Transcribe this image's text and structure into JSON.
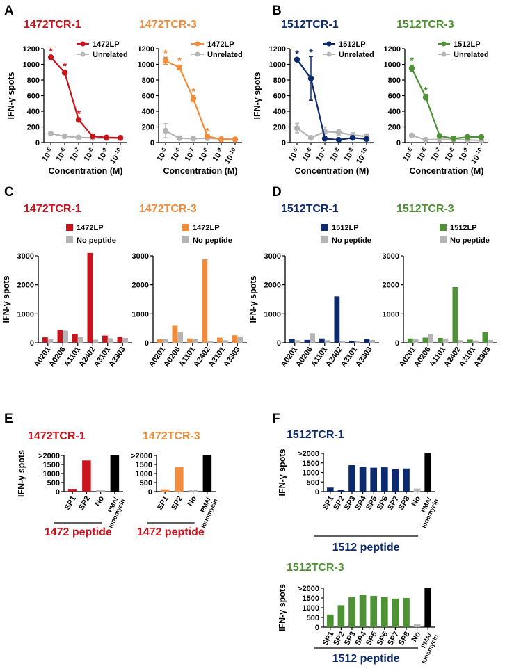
{
  "colors": {
    "red": "#c8141d",
    "orange": "#f08c3c",
    "navy": "#0d2a6e",
    "green": "#4f9135",
    "gray": "#b5b5b5",
    "black": "#000000"
  },
  "panel_labels": [
    "A",
    "B",
    "C",
    "D",
    "E",
    "F"
  ],
  "chart_data": [
    {
      "type": "line",
      "panel": "A",
      "title": "1472TCR-1",
      "color": "red",
      "ylabel": "IFN-γ spots",
      "xlabel": "Concentration (M)",
      "x_ticks": [
        "10-5",
        "10-6",
        "10-7",
        "10-8",
        "10-9",
        "10-10"
      ],
      "y_ticks": [
        "0",
        "200",
        "400",
        "600",
        "800",
        "1000",
        "1200"
      ],
      "ylim": [
        0,
        1200
      ],
      "series": [
        {
          "name": "1472LP",
          "color": "red",
          "values": [
            1090,
            895,
            290,
            80,
            65,
            60
          ],
          "errors": [
            0,
            30,
            25,
            0,
            0,
            0
          ],
          "star": [
            true,
            true,
            true,
            false,
            false,
            false
          ]
        },
        {
          "name": "Unrelated",
          "color": "gray",
          "values": [
            115,
            80,
            65,
            60,
            55,
            55
          ],
          "errors": [
            0,
            0,
            0,
            0,
            0,
            0
          ],
          "star": [
            false,
            false,
            false,
            false,
            false,
            false
          ]
        }
      ]
    },
    {
      "type": "line",
      "panel": "A",
      "title": "1472TCR-3",
      "color": "orange",
      "ylabel": "",
      "xlabel": "Concentration (M)",
      "x_ticks": [
        "10-5",
        "10-6",
        "10-7",
        "10-8",
        "10-9",
        "10-10"
      ],
      "y_ticks": [
        "0",
        "200",
        "400",
        "600",
        "800",
        "1000",
        "1200"
      ],
      "ylim": [
        0,
        1200
      ],
      "series": [
        {
          "name": "1472LP",
          "color": "orange",
          "values": [
            1045,
            960,
            560,
            80,
            40,
            40
          ],
          "errors": [
            45,
            30,
            40,
            10,
            0,
            0
          ],
          "star": [
            true,
            true,
            true,
            true,
            false,
            false
          ]
        },
        {
          "name": "Unrelated",
          "color": "gray",
          "values": [
            150,
            55,
            50,
            55,
            45,
            40
          ],
          "errors": [
            90,
            0,
            0,
            0,
            0,
            0
          ],
          "star": [
            false,
            false,
            false,
            false,
            false,
            false
          ]
        }
      ]
    },
    {
      "type": "line",
      "panel": "B",
      "title": "1512TCR-1",
      "color": "navy",
      "ylabel": "IFN-γ spots",
      "xlabel": "Concentration (M)",
      "x_ticks": [
        "10-5",
        "10-6",
        "10-7",
        "10-8",
        "10-9",
        "10-10"
      ],
      "y_ticks": [
        "0",
        "200",
        "400",
        "600",
        "800",
        "1000",
        "1200"
      ],
      "ylim": [
        0,
        1200
      ],
      "series": [
        {
          "name": "1512LP",
          "color": "navy",
          "values": [
            1060,
            820,
            50,
            35,
            60,
            45
          ],
          "errors": [
            20,
            280,
            0,
            0,
            0,
            0
          ],
          "star": [
            true,
            true,
            false,
            false,
            false,
            false
          ]
        },
        {
          "name": "Unrelated",
          "color": "gray",
          "values": [
            185,
            60,
            140,
            130,
            95,
            80
          ],
          "errors": [
            60,
            0,
            60,
            40,
            30,
            30
          ],
          "star": [
            false,
            false,
            false,
            false,
            false,
            false
          ]
        }
      ]
    },
    {
      "type": "line",
      "panel": "B",
      "title": "1512TCR-3",
      "color": "green",
      "ylabel": "",
      "xlabel": "Concentration (M)",
      "x_ticks": [
        "10-5",
        "10-6",
        "10-7",
        "10-8",
        "10-9",
        "10-10"
      ],
      "y_ticks": [
        "0",
        "200",
        "400",
        "600",
        "800",
        "1000",
        "1200"
      ],
      "ylim": [
        0,
        1200
      ],
      "series": [
        {
          "name": "1512LP",
          "color": "green",
          "values": [
            950,
            580,
            85,
            50,
            70,
            70
          ],
          "errors": [
            40,
            35,
            25,
            0,
            15,
            15
          ],
          "star": [
            true,
            true,
            false,
            false,
            false,
            false
          ]
        },
        {
          "name": "Unrelated",
          "color": "gray",
          "values": [
            90,
            35,
            40,
            40,
            35,
            25
          ],
          "errors": [
            0,
            0,
            0,
            0,
            0,
            0
          ],
          "star": [
            false,
            false,
            false,
            false,
            false,
            false
          ]
        }
      ]
    },
    {
      "type": "bar",
      "panel": "C",
      "title": "1472TCR-1",
      "color": "red",
      "ylabel": "IFN-γ spots",
      "ylim": [
        0,
        3000
      ],
      "y_ticks": [
        "0",
        "1000",
        "2000",
        "3000"
      ],
      "categories": [
        "A0201",
        "A0206",
        "A1101",
        "A2402",
        "A3101",
        "A3303"
      ],
      "series": [
        {
          "name": "1472LP",
          "color": "red",
          "values": [
            190,
            450,
            310,
            3100,
            250,
            210
          ]
        },
        {
          "name": "No peptide",
          "color": "gray",
          "values": [
            120,
            420,
            210,
            110,
            160,
            170
          ]
        }
      ]
    },
    {
      "type": "bar",
      "panel": "C",
      "title": "1472TCR-3",
      "color": "orange",
      "ylabel": "",
      "ylim": [
        0,
        3000
      ],
      "y_ticks": [
        "0",
        "1000",
        "2000",
        "3000"
      ],
      "categories": [
        "A0201",
        "A0206",
        "A1101",
        "A2402",
        "A3101",
        "A3303"
      ],
      "series": [
        {
          "name": "1472LP",
          "color": "orange",
          "values": [
            130,
            590,
            150,
            2880,
            180,
            260
          ]
        },
        {
          "name": "No peptide",
          "color": "gray",
          "values": [
            130,
            360,
            130,
            70,
            90,
            220
          ]
        }
      ]
    },
    {
      "type": "bar",
      "panel": "D",
      "title": "1512TCR-1",
      "color": "navy",
      "ylabel": "IFN-γ spots",
      "ylim": [
        0,
        3000
      ],
      "y_ticks": [
        "0",
        "1000",
        "2000",
        "3000"
      ],
      "categories": [
        "A0201",
        "A0206",
        "A1101",
        "A2402",
        "A3101",
        "A3303"
      ],
      "series": [
        {
          "name": "1512LP",
          "color": "navy",
          "values": [
            140,
            100,
            150,
            1600,
            70,
            130
          ]
        },
        {
          "name": "No peptide",
          "color": "gray",
          "values": [
            90,
            330,
            90,
            50,
            50,
            100
          ]
        }
      ]
    },
    {
      "type": "bar",
      "panel": "D",
      "title": "1512TCR-3",
      "color": "green",
      "ylabel": "",
      "ylim": [
        0,
        3000
      ],
      "y_ticks": [
        "0",
        "1000",
        "2000",
        "3000"
      ],
      "categories": [
        "A0201",
        "A0206",
        "A1101",
        "A2402",
        "A3101",
        "A3303"
      ],
      "series": [
        {
          "name": "1512LP",
          "color": "green",
          "values": [
            150,
            180,
            170,
            1920,
            110,
            360
          ]
        },
        {
          "name": "No peptide",
          "color": "gray",
          "values": [
            120,
            300,
            150,
            90,
            80,
            100
          ]
        }
      ]
    },
    {
      "type": "bar",
      "panel": "E",
      "title": "1472TCR-1",
      "color": "red",
      "ylabel": "IFN-γ spots",
      "ylim": [
        0,
        2000
      ],
      "y_ticks": [
        "0",
        "500",
        "1000",
        "1500",
        ">2000"
      ],
      "categories": [
        "SP1",
        "SP2",
        "No",
        "PMA/ Ionomycin"
      ],
      "values": [
        150,
        1720,
        110,
        2000
      ],
      "bar_colors": [
        "red",
        "red",
        "gray",
        "black"
      ],
      "label_colors": [
        "red",
        "red",
        "black",
        "black"
      ],
      "group_label": "1472 peptide"
    },
    {
      "type": "bar",
      "panel": "E",
      "title": "1472TCR-3",
      "color": "orange",
      "ylabel": "",
      "ylim": [
        0,
        2000
      ],
      "y_ticks": [
        "0",
        "500",
        "1000",
        "1500",
        ">2000"
      ],
      "categories": [
        "SP1",
        "SP2",
        "No",
        "PMA/ Ionomycin"
      ],
      "values": [
        130,
        1350,
        100,
        2000
      ],
      "bar_colors": [
        "orange",
        "orange",
        "gray",
        "black"
      ],
      "label_colors": [
        "red",
        "red",
        "black",
        "black"
      ],
      "group_label": "1472 peptide"
    },
    {
      "type": "bar",
      "panel": "F",
      "title": "1512TCR-1",
      "color": "navy",
      "ylabel": "IFN-γ spots",
      "ylim": [
        0,
        2000
      ],
      "y_ticks": [
        "0",
        "500",
        "1000",
        "1500",
        ">2000"
      ],
      "categories": [
        "SP1",
        "SP2",
        "SP3",
        "SP4",
        "SP5",
        "SP6",
        "SP7",
        "SP8",
        "No",
        "PMA/ Ionomycin"
      ],
      "values": [
        210,
        100,
        1380,
        1310,
        1250,
        1270,
        1170,
        1210,
        160,
        2000
      ],
      "bar_colors": [
        "navy",
        "navy",
        "navy",
        "navy",
        "navy",
        "navy",
        "navy",
        "navy",
        "gray",
        "black"
      ],
      "label_colors": [
        "navy",
        "navy",
        "navy",
        "navy",
        "navy",
        "navy",
        "navy",
        "navy",
        "black",
        "black"
      ],
      "group_label": "1512 peptide"
    },
    {
      "type": "bar",
      "panel": "F",
      "title": "1512TCR-3",
      "color": "green",
      "ylabel": "IFN-γ spots",
      "ylim": [
        0,
        2000
      ],
      "y_ticks": [
        "0",
        "500",
        "1000",
        "1500",
        ">2000"
      ],
      "categories": [
        "SP1",
        "SP2",
        "SP3",
        "SP4",
        "SP5",
        "SP6",
        "SP7",
        "SP8",
        "No",
        "PMA/ Ionomycin"
      ],
      "values": [
        650,
        1130,
        1550,
        1670,
        1610,
        1550,
        1470,
        1500,
        150,
        2000
      ],
      "bar_colors": [
        "green",
        "green",
        "green",
        "green",
        "green",
        "green",
        "green",
        "green",
        "gray",
        "black"
      ],
      "label_colors": [
        "navy",
        "navy",
        "navy",
        "navy",
        "navy",
        "navy",
        "navy",
        "navy",
        "black",
        "black"
      ],
      "group_label": "1512 peptide"
    }
  ]
}
